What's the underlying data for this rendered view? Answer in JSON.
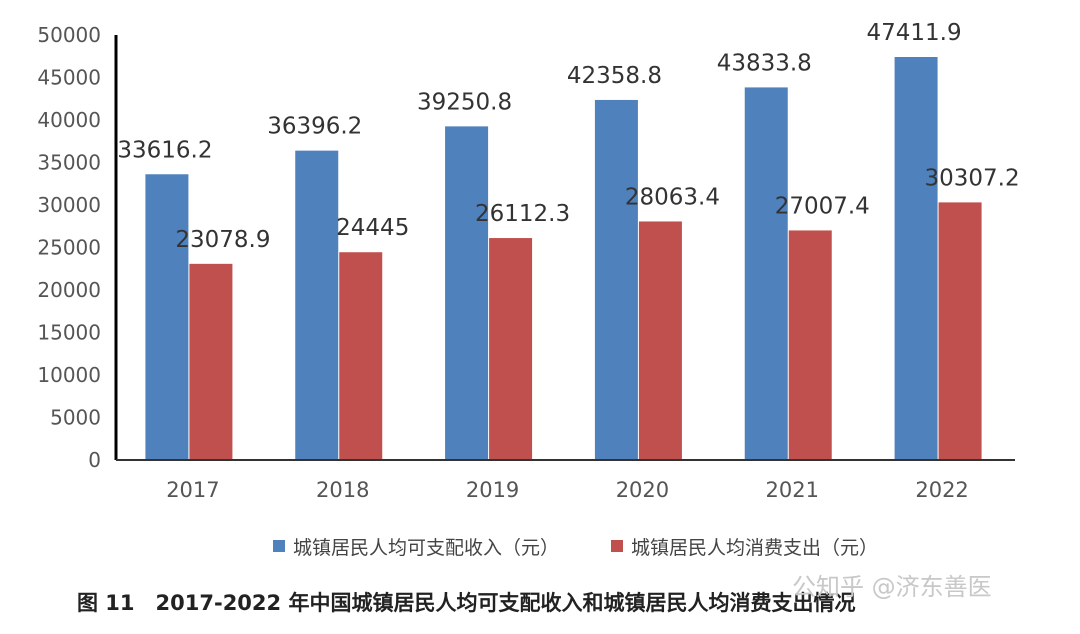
{
  "chart_data": {
    "type": "bar",
    "categories": [
      "2017",
      "2018",
      "2019",
      "2020",
      "2021",
      "2022"
    ],
    "series": [
      {
        "name": "城镇居民人均可支配收入（元）",
        "color": "#4f81bd",
        "values": [
          33616.2,
          36396.2,
          39250.8,
          42358.8,
          43833.8,
          47411.9
        ],
        "labels": [
          "33616.2",
          "36396.2",
          "39250.8",
          "42358.8",
          "43833.8",
          "47411.9"
        ]
      },
      {
        "name": "城镇居民人均消费支出（元）",
        "color": "#c0504d",
        "values": [
          23078.9,
          24445,
          26112.3,
          28063.4,
          27007.4,
          30307.2
        ],
        "labels": [
          "23078.9",
          "24445",
          "26112.3",
          "28063.4",
          "27007.4",
          "30307.2"
        ]
      }
    ],
    "ylim": [
      0,
      50000
    ],
    "yticks": [
      "0",
      "5000",
      "10000",
      "15000",
      "20000",
      "25000",
      "30000",
      "35000",
      "40000",
      "45000",
      "50000"
    ],
    "grid": false,
    "legend_position": "bottom",
    "caption": "图 11　2017-2022 年中国城镇居民人均可支配收入和城镇居民人均消费支出情况"
  },
  "watermark": "公知乎 @济东善医"
}
